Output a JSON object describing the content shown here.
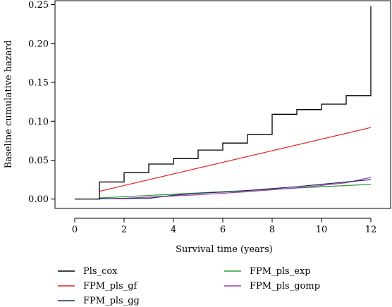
{
  "chart_data": {
    "type": "line",
    "title": "",
    "xlabel": "Survival time (years)",
    "ylabel": "Baseline cumulative hazard",
    "xlim": [
      -0.8,
      12.8
    ],
    "ylim": [
      -0.012,
      0.255
    ],
    "x_ticks": [
      0,
      2,
      4,
      6,
      8,
      10,
      12
    ],
    "x_tick_labels": [
      "0",
      "2",
      "4",
      "6",
      "8",
      "10",
      "12"
    ],
    "y_ticks": [
      0.0,
      0.05,
      0.1,
      0.15,
      0.2,
      0.25
    ],
    "y_tick_labels": [
      "0.00",
      "0.05",
      "0.10",
      "0.15",
      "0.20",
      "0.25"
    ],
    "grid": false,
    "legend_position": "bottom",
    "series": [
      {
        "name": "Pls_cox",
        "color": "#000000",
        "style": "step",
        "x": [
          0,
          1,
          1,
          2,
          2,
          3,
          3,
          4,
          4,
          5,
          5,
          6,
          6,
          7,
          7,
          8,
          8,
          9,
          9,
          10,
          10,
          11,
          11,
          12,
          12
        ],
        "y": [
          0,
          0,
          0.022,
          0.022,
          0.034,
          0.034,
          0.045,
          0.045,
          0.052,
          0.052,
          0.063,
          0.063,
          0.072,
          0.072,
          0.083,
          0.083,
          0.109,
          0.109,
          0.115,
          0.115,
          0.122,
          0.122,
          0.133,
          0.133,
          0.248
        ]
      },
      {
        "name": "FPM_pls_gf",
        "color": "#e8221c",
        "style": "line",
        "x": [
          1,
          12
        ],
        "y": [
          0.01,
          0.092
        ]
      },
      {
        "name": "FPM_pls_gg",
        "color": "#1e2a66",
        "style": "line",
        "x": [
          1,
          2,
          3,
          4,
          5,
          6,
          7,
          8,
          9,
          10,
          11,
          12
        ],
        "y": [
          0.0005,
          0.0005,
          0.001,
          0.005,
          0.0075,
          0.009,
          0.011,
          0.0135,
          0.016,
          0.019,
          0.022,
          0.025
        ]
      },
      {
        "name": "FPM_pls_exp",
        "color": "#2e9a33",
        "style": "line",
        "x": [
          1,
          12
        ],
        "y": [
          0.0015,
          0.019
        ]
      },
      {
        "name": "FPM_pls_gomp",
        "color": "#a23ea6",
        "style": "line",
        "x": [
          1,
          2,
          3,
          4,
          5,
          6,
          7,
          8,
          9,
          10,
          11,
          12
        ],
        "y": [
          0.0003,
          0.0012,
          0.0025,
          0.004,
          0.0055,
          0.0075,
          0.0095,
          0.012,
          0.0145,
          0.0175,
          0.021,
          0.028
        ]
      }
    ]
  }
}
